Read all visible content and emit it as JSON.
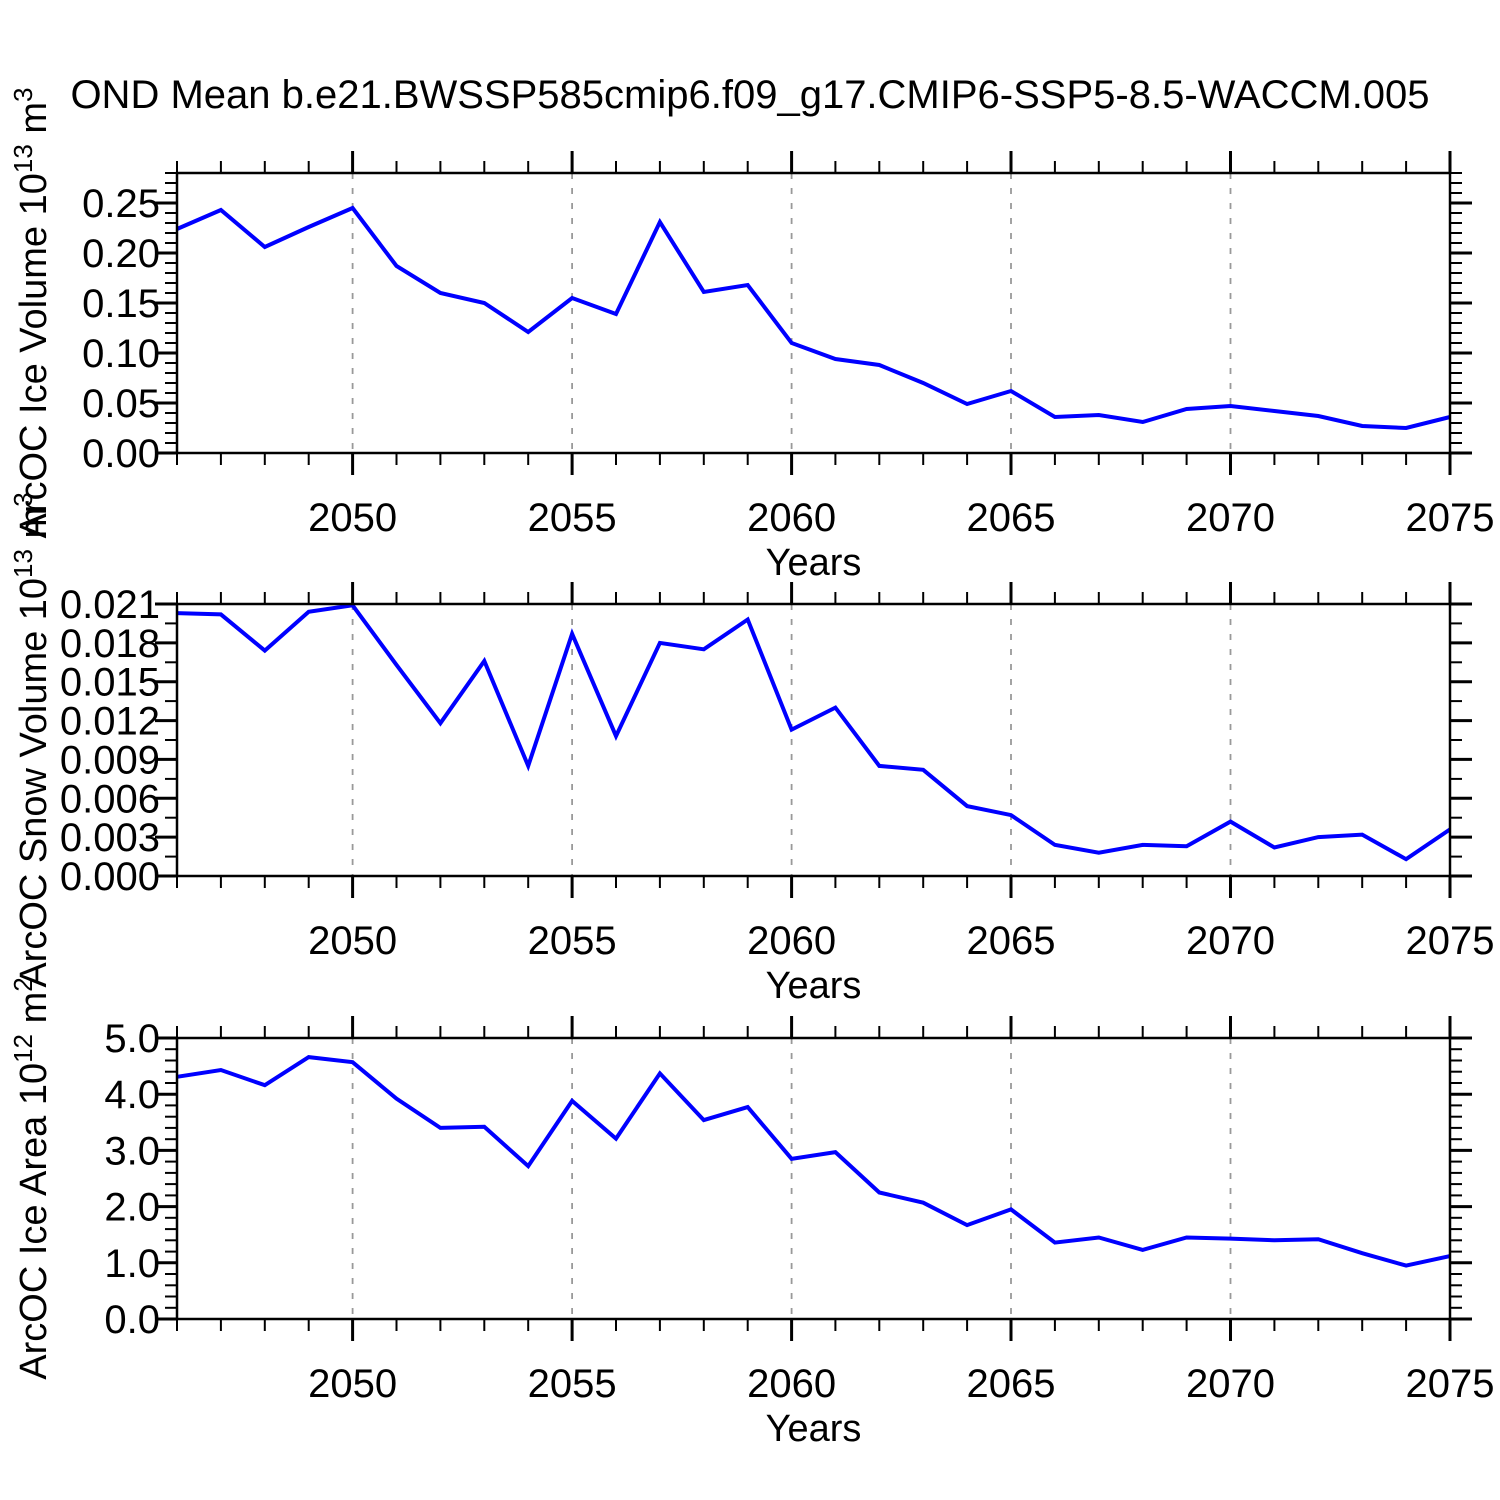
{
  "title": "OND Mean b.e21.BWSSP585cmip6.f09_g17.CMIP6-SSP5-8.5-WACCM.005",
  "style": {
    "line_color": "#0000ff",
    "grid_color": "#999999",
    "axis_color": "#000000",
    "background_color": "#ffffff"
  },
  "chart_data": [
    {
      "type": "line",
      "name": "arcoc-ice-volume",
      "xlabel": "Years",
      "ylabel_plain": "ArcOC Ice Volume 10^13 m^3",
      "ylabel_rich": [
        {
          "t": "ArcOC Ice Volume 10"
        },
        {
          "sup": "13"
        },
        {
          "t": " m"
        },
        {
          "sup": "3"
        }
      ],
      "xlim": [
        2046,
        2075
      ],
      "ylim": [
        0,
        0.28
      ],
      "xticks": [
        2050,
        2055,
        2060,
        2065,
        2070,
        2075
      ],
      "xtick_labels": [
        "2050",
        "2055",
        "2060",
        "2065",
        "2070",
        "2075"
      ],
      "x_minor_step": 1,
      "yticks": [
        0.0,
        0.05,
        0.1,
        0.15,
        0.2,
        0.25
      ],
      "ytick_labels": [
        "0.00",
        "0.05",
        "0.10",
        "0.15",
        "0.20",
        "0.25"
      ],
      "y_minor_step": 0.01,
      "grid": "vertical-dashed-at-major-xticks",
      "x": [
        2046,
        2047,
        2048,
        2049,
        2050,
        2051,
        2052,
        2053,
        2054,
        2055,
        2056,
        2057,
        2058,
        2059,
        2060,
        2061,
        2062,
        2063,
        2064,
        2065,
        2066,
        2067,
        2068,
        2069,
        2070,
        2071,
        2072,
        2073,
        2074,
        2075
      ],
      "values": [
        0.224,
        0.243,
        0.206,
        0.226,
        0.245,
        0.187,
        0.16,
        0.15,
        0.121,
        0.155,
        0.139,
        0.231,
        0.161,
        0.168,
        0.11,
        0.094,
        0.088,
        0.07,
        0.049,
        0.062,
        0.036,
        0.038,
        0.031,
        0.044,
        0.047,
        0.042,
        0.037,
        0.027,
        0.025,
        0.036
      ]
    },
    {
      "type": "line",
      "name": "arcoc-snow-volume",
      "xlabel": "Years",
      "ylabel_plain": "ArcOC Snow Volume 10^13 m^3",
      "ylabel_rich": [
        {
          "t": "ArcOC Snow Volume 10"
        },
        {
          "sup": "13"
        },
        {
          "t": " m"
        },
        {
          "sup": "3"
        }
      ],
      "xlim": [
        2046,
        2075
      ],
      "ylim": [
        0,
        0.021
      ],
      "xticks": [
        2050,
        2055,
        2060,
        2065,
        2070,
        2075
      ],
      "xtick_labels": [
        "2050",
        "2055",
        "2060",
        "2065",
        "2070",
        "2075"
      ],
      "x_minor_step": 1,
      "yticks": [
        0.0,
        0.003,
        0.006,
        0.009,
        0.012,
        0.015,
        0.018,
        0.021
      ],
      "ytick_labels": [
        "0.000",
        "0.003",
        "0.006",
        "0.009",
        "0.012",
        "0.015",
        "0.018",
        "0.021"
      ],
      "y_minor_step": 0.0015,
      "grid": "vertical-dashed-at-major-xticks",
      "x": [
        2046,
        2047,
        2048,
        2049,
        2050,
        2051,
        2052,
        2053,
        2054,
        2055,
        2056,
        2057,
        2058,
        2059,
        2060,
        2061,
        2062,
        2063,
        2064,
        2065,
        2066,
        2067,
        2068,
        2069,
        2070,
        2071,
        2072,
        2073,
        2074,
        2075
      ],
      "values": [
        0.0203,
        0.0202,
        0.0174,
        0.0204,
        0.0209,
        0.0163,
        0.0118,
        0.0166,
        0.0085,
        0.0187,
        0.0108,
        0.018,
        0.0175,
        0.0198,
        0.0113,
        0.013,
        0.0085,
        0.0082,
        0.0054,
        0.0047,
        0.0024,
        0.0018,
        0.0024,
        0.0023,
        0.0042,
        0.0022,
        0.003,
        0.0032,
        0.0013,
        0.0036
      ]
    },
    {
      "type": "line",
      "name": "arcoc-ice-area",
      "xlabel": "Years",
      "ylabel_plain": "ArcOC Ice Area 10^12 m^2",
      "ylabel_rich": [
        {
          "t": "ArcOC Ice Area 10"
        },
        {
          "sup": "12"
        },
        {
          "t": " m"
        },
        {
          "sup": "2"
        }
      ],
      "xlim": [
        2046,
        2075
      ],
      "ylim": [
        0,
        5.0
      ],
      "xticks": [
        2050,
        2055,
        2060,
        2065,
        2070,
        2075
      ],
      "xtick_labels": [
        "2050",
        "2055",
        "2060",
        "2065",
        "2070",
        "2075"
      ],
      "x_minor_step": 1,
      "yticks": [
        0.0,
        1.0,
        2.0,
        3.0,
        4.0,
        5.0
      ],
      "ytick_labels": [
        "0.0",
        "1.0",
        "2.0",
        "3.0",
        "4.0",
        "5.0"
      ],
      "y_minor_step": 0.2,
      "grid": "vertical-dashed-at-major-xticks",
      "x": [
        2046,
        2047,
        2048,
        2049,
        2050,
        2051,
        2052,
        2053,
        2054,
        2055,
        2056,
        2057,
        2058,
        2059,
        2060,
        2061,
        2062,
        2063,
        2064,
        2065,
        2066,
        2067,
        2068,
        2069,
        2070,
        2071,
        2072,
        2073,
        2074,
        2075
      ],
      "values": [
        4.31,
        4.43,
        4.16,
        4.66,
        4.57,
        3.92,
        3.4,
        3.42,
        2.72,
        3.88,
        3.21,
        4.37,
        3.54,
        3.77,
        2.85,
        2.97,
        2.25,
        2.07,
        1.67,
        1.95,
        1.36,
        1.45,
        1.23,
        1.45,
        1.43,
        1.4,
        1.42,
        1.17,
        0.95,
        1.12
      ]
    }
  ]
}
